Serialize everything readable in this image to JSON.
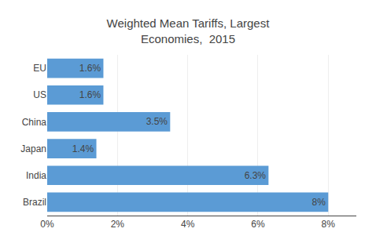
{
  "chart_data": {
    "type": "bar",
    "orientation": "horizontal",
    "title": "Weighted Mean Tariffs, Largest\nEconomies,  2015",
    "categories": [
      "EU",
      "US",
      "China",
      "Japan",
      "India",
      "Brazil"
    ],
    "values": [
      1.6,
      1.6,
      3.5,
      1.4,
      6.3,
      8.0
    ],
    "value_labels": [
      "1.6%",
      "1.6%",
      "3.5%",
      "1.4%",
      "6.3%",
      "8%"
    ],
    "color": "#5B9BD5",
    "xlim": [
      0,
      8.8
    ],
    "xticks": [
      {
        "value": 0,
        "label": "0%"
      },
      {
        "value": 2,
        "label": "2%"
      },
      {
        "value": 4,
        "label": "4%"
      },
      {
        "value": 6,
        "label": "6%"
      },
      {
        "value": 8,
        "label": "8%"
      }
    ],
    "grid": true,
    "data_labels": true
  }
}
